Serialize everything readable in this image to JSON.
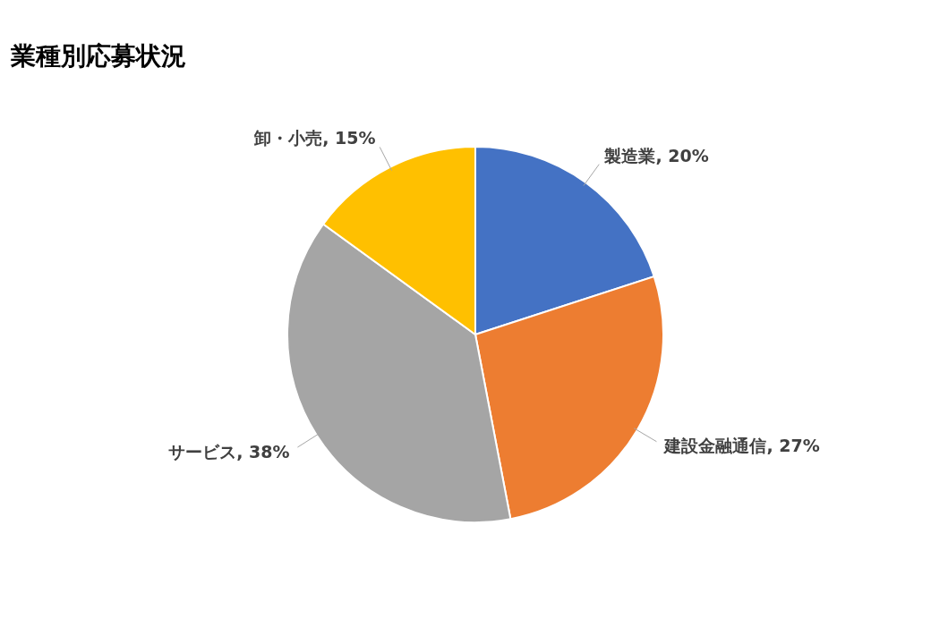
{
  "chart_data": {
    "type": "pie",
    "title": "業種別応募状況",
    "categories": [
      "製造業",
      "建設金融通信",
      "サービス",
      "卸・小売"
    ],
    "values": [
      20,
      27,
      38,
      15
    ],
    "value_labels": [
      "20%",
      "27%",
      "38%",
      "15%"
    ],
    "colors": [
      "#4472c4",
      "#ed7d31",
      "#a5a5a5",
      "#ffc000"
    ]
  }
}
